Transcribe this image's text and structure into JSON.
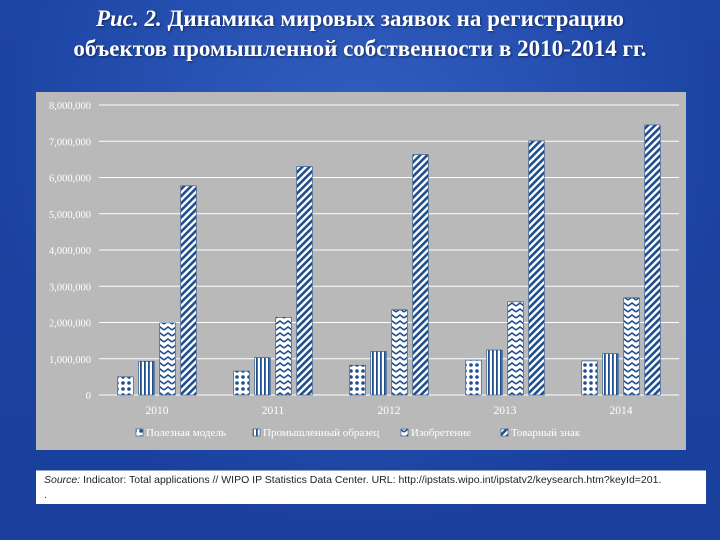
{
  "header": {
    "title_label": "Рис. 2.",
    "title_line1_rest": "Динамика мировых заявок на регистрацию",
    "title_line2": "объектов промышленной собственности в 2010-2014 гг."
  },
  "source": {
    "label": "Source:",
    "text": "Indicator: Total applications // WIPO IP Statistics Data Center. URL: http://ipstats.wipo.int/ipstatv2/keysearch.htm?keyId=201.",
    "extra": "."
  },
  "chart_data": {
    "type": "bar",
    "categories": [
      "2010",
      "2011",
      "2012",
      "2013",
      "2014"
    ],
    "series": [
      {
        "name": "Полезная модель",
        "values": [
          500000,
          660000,
          820000,
          960000,
          940000
        ],
        "pattern": "dots"
      },
      {
        "name": "Промышленный образец",
        "values": [
          930000,
          1030000,
          1200000,
          1240000,
          1140000
        ],
        "pattern": "vstripes"
      },
      {
        "name": "Изобретение",
        "values": [
          1990000,
          2140000,
          2350000,
          2570000,
          2680000
        ],
        "pattern": "zigzag"
      },
      {
        "name": "Товарный знак",
        "values": [
          5770000,
          6300000,
          6630000,
          7010000,
          7450000
        ],
        "pattern": "diag"
      }
    ],
    "ylim": [
      0,
      8000000
    ],
    "yticks": [
      "0",
      "1,000,000",
      "2,000,000",
      "3,000,000",
      "4,000,000",
      "5,000,000",
      "6,000,000",
      "7,000,000",
      "8,000,000"
    ],
    "grid": true,
    "legend_position": "bottom",
    "colors": {
      "bar": "#1f4e8c",
      "background": "#b9b9b9",
      "grid": "#ffffff"
    }
  }
}
